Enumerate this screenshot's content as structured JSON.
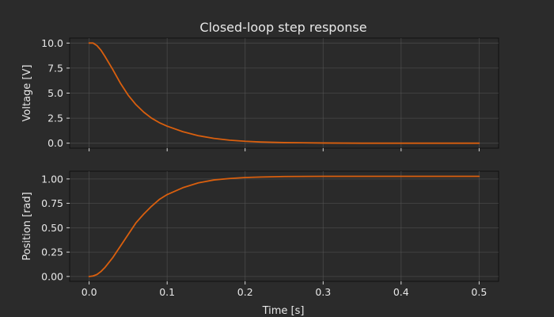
{
  "colors": {
    "background": "#2b2b2b",
    "line": "#d95f0e"
  },
  "chart_data": [
    {
      "type": "line",
      "title": "Closed-loop step response",
      "ylabel": "Voltage [V]",
      "xlabel": "",
      "xlim": [
        -0.025,
        0.525
      ],
      "ylim": [
        -0.5,
        10.5
      ],
      "xticks": [
        0.0,
        0.1,
        0.2,
        0.3,
        0.4,
        0.5
      ],
      "xtick_labels": [],
      "yticks": [
        0.0,
        2.5,
        5.0,
        7.5,
        10.0
      ],
      "ytick_labels": [
        "0.0",
        "2.5",
        "5.0",
        "7.5",
        "10.0"
      ],
      "grid": true,
      "series": [
        {
          "x": [
            0.0,
            0.005,
            0.01,
            0.015,
            0.02,
            0.03,
            0.04,
            0.05,
            0.06,
            0.07,
            0.08,
            0.09,
            0.1,
            0.12,
            0.14,
            0.16,
            0.18,
            0.2,
            0.22,
            0.25,
            0.3,
            0.35,
            0.4,
            0.45,
            0.5
          ],
          "y": [
            10.0,
            10.0,
            9.75,
            9.3,
            8.7,
            7.4,
            6.0,
            4.8,
            3.85,
            3.1,
            2.5,
            2.05,
            1.7,
            1.15,
            0.75,
            0.48,
            0.3,
            0.19,
            0.12,
            0.06,
            0.02,
            0.0,
            0.0,
            0.0,
            0.0
          ]
        }
      ]
    },
    {
      "type": "line",
      "title": "",
      "ylabel": "Position [rad]",
      "xlabel": "Time [s]",
      "xlim": [
        -0.025,
        0.525
      ],
      "ylim": [
        -0.05,
        1.08
      ],
      "xticks": [
        0.0,
        0.1,
        0.2,
        0.3,
        0.4,
        0.5
      ],
      "xtick_labels": [
        "0.0",
        "0.1",
        "0.2",
        "0.3",
        "0.4",
        "0.5"
      ],
      "yticks": [
        0.0,
        0.25,
        0.5,
        0.75,
        1.0
      ],
      "ytick_labels": [
        "0.00",
        "0.25",
        "0.50",
        "0.75",
        "1.00"
      ],
      "grid": true,
      "series": [
        {
          "x": [
            0.0,
            0.005,
            0.01,
            0.015,
            0.02,
            0.03,
            0.04,
            0.05,
            0.06,
            0.07,
            0.08,
            0.09,
            0.1,
            0.12,
            0.14,
            0.16,
            0.18,
            0.2,
            0.22,
            0.25,
            0.3,
            0.35,
            0.4,
            0.45,
            0.5
          ],
          "y": [
            0.0,
            0.005,
            0.02,
            0.05,
            0.09,
            0.19,
            0.31,
            0.43,
            0.55,
            0.64,
            0.72,
            0.79,
            0.84,
            0.91,
            0.96,
            0.99,
            1.005,
            1.015,
            1.02,
            1.025,
            1.027,
            1.027,
            1.027,
            1.027,
            1.027
          ]
        }
      ]
    }
  ]
}
